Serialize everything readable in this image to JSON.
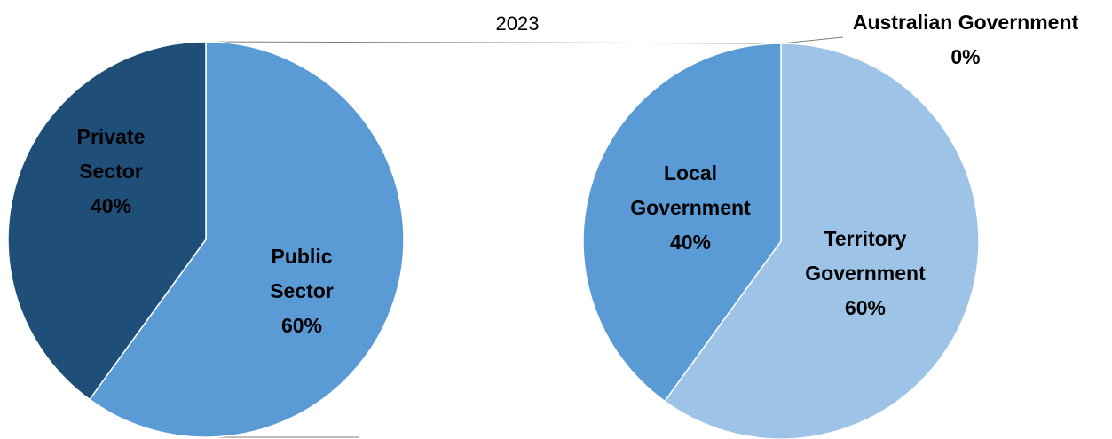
{
  "chart_data": [
    {
      "type": "pie",
      "title": "2023",
      "slices": [
        {
          "label_lines": [
            "Public",
            "Sector",
            "60%"
          ],
          "value": 60,
          "color": "#5b9bd5"
        },
        {
          "label_lines": [
            "Private",
            "Sector",
            "40%"
          ],
          "value": 40,
          "color": "#1f4e79"
        }
      ]
    },
    {
      "type": "pie",
      "slices": [
        {
          "label_lines": [
            "Territory",
            "Government",
            "60%"
          ],
          "value": 60,
          "color": "#9dc3e6"
        },
        {
          "label_lines": [
            "Local",
            "Government",
            "40%"
          ],
          "value": 40,
          "color": "#5b9bd5"
        },
        {
          "label_lines": [
            "Australian Government",
            "0%"
          ],
          "value": 0,
          "color": "#9dc3e6"
        }
      ]
    }
  ]
}
